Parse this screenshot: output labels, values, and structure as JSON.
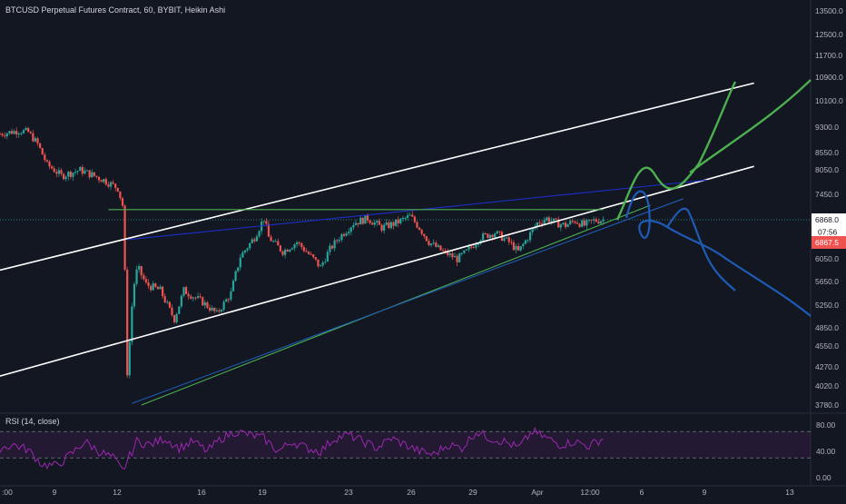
{
  "header": {
    "legend": "BTCUSD Perpetual Futures Contract, 60, BYBIT, Heikin Ashi"
  },
  "rsi": {
    "legend": "RSI (14, close)",
    "levels": [
      80,
      40,
      0
    ],
    "level_labels": [
      "80.00",
      "40.00",
      "0.00"
    ],
    "upper_band": 70,
    "lower_band": 30,
    "color": "#9c27b0"
  },
  "price_axis": {
    "labels": [
      "13500.0",
      "12500.0",
      "11700.0",
      "10900.0",
      "10100.0",
      "9300.0",
      "8550.0",
      "8050.0",
      "7450.0",
      "6868.0",
      "6050.0",
      "5650.0",
      "5250.0",
      "4850.0",
      "4550.0",
      "4270.0",
      "4020.0",
      "3780.0"
    ],
    "current_price": "6868.0",
    "countdown": "07:56",
    "secondary_price": "6867.5",
    "current_color": "#ffffff",
    "secondary_color": "#ef5350"
  },
  "time_axis": {
    "labels": [
      ":00",
      "9",
      "12",
      "16",
      "19",
      "23",
      "26",
      "29",
      "Apr",
      "12:00",
      "6",
      "9",
      "13"
    ]
  },
  "colors": {
    "background": "#131722",
    "up": "#26a69a",
    "down": "#ef5350",
    "channel_line": "#ffffff",
    "blue_trend": "#1c2ec9",
    "blue_projection": "#1e5bb5",
    "green_line": "#4caf50"
  },
  "chart_data": {
    "type": "candlestick",
    "title": "BTCUSD Perpetual Futures Contract, 60, BYBIT, Heikin Ashi",
    "x_ticks": [
      ":00",
      "9",
      "12",
      "16",
      "19",
      "23",
      "26",
      "29",
      "Apr",
      "12:00",
      "6",
      "9",
      "13"
    ],
    "y_ticks": [
      13500,
      12500,
      11700,
      10900,
      10100,
      9300,
      8550,
      8050,
      7450,
      6868,
      6050,
      5650,
      5250,
      4850,
      4550,
      4270,
      4020,
      3780
    ],
    "price_path": [
      [
        0,
        9100
      ],
      [
        4,
        9200
      ],
      [
        6,
        9150
      ],
      [
        8,
        8800
      ],
      [
        10,
        8200
      ],
      [
        13,
        7900
      ],
      [
        17,
        8050
      ],
      [
        22,
        7800
      ],
      [
        25,
        7600
      ],
      [
        26,
        7200
      ],
      [
        26.5,
        5800
      ],
      [
        27,
        4200
      ],
      [
        27.6,
        4700
      ],
      [
        28.2,
        5500
      ],
      [
        29.2,
        5900
      ],
      [
        31,
        5600
      ],
      [
        34,
        5500
      ],
      [
        37,
        5000
      ],
      [
        39,
        5500
      ],
      [
        43,
        5300
      ],
      [
        46,
        5100
      ],
      [
        49,
        5450
      ],
      [
        51,
        6100
      ],
      [
        54,
        6500
      ],
      [
        56,
        6900
      ],
      [
        57,
        6500
      ],
      [
        60,
        6200
      ],
      [
        63,
        6400
      ],
      [
        66,
        6100
      ],
      [
        68,
        5900
      ],
      [
        70,
        6250
      ],
      [
        72,
        6500
      ],
      [
        75,
        6800
      ],
      [
        78,
        6900
      ],
      [
        81,
        6700
      ],
      [
        84,
        6800
      ],
      [
        87,
        6950
      ],
      [
        89,
        6700
      ],
      [
        91,
        6400
      ],
      [
        94,
        6200
      ],
      [
        97,
        6050
      ],
      [
        99,
        6200
      ],
      [
        102,
        6500
      ],
      [
        105,
        6600
      ],
      [
        108,
        6400
      ],
      [
        110,
        6200
      ],
      [
        112,
        6500
      ],
      [
        114,
        6800
      ],
      [
        116,
        6900
      ],
      [
        118,
        6800
      ],
      [
        120,
        6750
      ],
      [
        122,
        6850
      ],
      [
        124,
        6750
      ],
      [
        126,
        6850
      ],
      [
        128,
        6868
      ]
    ],
    "rsi_path": [
      [
        0,
        45
      ],
      [
        3,
        50
      ],
      [
        6,
        42
      ],
      [
        9,
        20
      ],
      [
        12,
        18
      ],
      [
        15,
        35
      ],
      [
        18,
        55
      ],
      [
        21,
        40
      ],
      [
        24,
        30
      ],
      [
        26,
        10
      ],
      [
        27,
        25
      ],
      [
        29,
        55
      ],
      [
        32,
        50
      ],
      [
        35,
        60
      ],
      [
        38,
        45
      ],
      [
        41,
        55
      ],
      [
        44,
        40
      ],
      [
        47,
        60
      ],
      [
        50,
        70
      ],
      [
        53,
        65
      ],
      [
        56,
        60
      ],
      [
        59,
        40
      ],
      [
        62,
        55
      ],
      [
        65,
        45
      ],
      [
        68,
        40
      ],
      [
        71,
        60
      ],
      [
        74,
        65
      ],
      [
        77,
        55
      ],
      [
        80,
        45
      ],
      [
        83,
        60
      ],
      [
        86,
        50
      ],
      [
        89,
        40
      ],
      [
        92,
        35
      ],
      [
        95,
        50
      ],
      [
        98,
        45
      ],
      [
        101,
        70
      ],
      [
        104,
        60
      ],
      [
        107,
        55
      ],
      [
        110,
        45
      ],
      [
        113,
        70
      ],
      [
        116,
        60
      ],
      [
        119,
        50
      ],
      [
        122,
        55
      ],
      [
        125,
        48
      ],
      [
        128,
        60
      ]
    ],
    "lines": [
      {
        "name": "channel-upper",
        "color": "#ffffff",
        "points": [
          [
            0,
            5850
          ],
          [
            160,
            10700
          ]
        ]
      },
      {
        "name": "channel-lower",
        "color": "#ffffff",
        "points": [
          [
            0,
            4150
          ],
          [
            160,
            8150
          ]
        ]
      },
      {
        "name": "blue-resistance",
        "color": "#1c2ec9",
        "points": [
          [
            27,
            6450
          ],
          [
            150,
            7800
          ]
        ]
      },
      {
        "name": "green-support",
        "color": "#4caf50",
        "points": [
          [
            30,
            3700
          ],
          [
            138,
            7200
          ]
        ]
      },
      {
        "name": "blue-support",
        "color": "#1e5bb5",
        "points": [
          [
            28,
            3800
          ],
          [
            145,
            7350
          ]
        ]
      },
      {
        "name": "green-horizontal",
        "color": "#4caf50",
        "points": [
          [
            23,
            7100
          ],
          [
            128,
            7100
          ]
        ]
      }
    ]
  }
}
